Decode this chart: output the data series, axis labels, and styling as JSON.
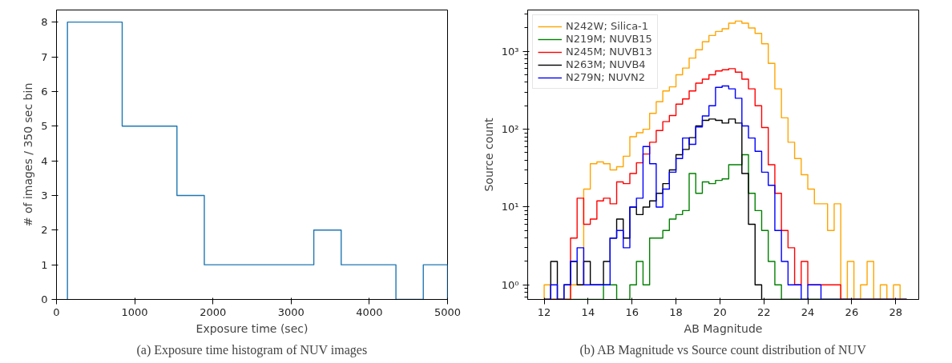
{
  "chart_data": [
    {
      "type": "histogram",
      "xlabel": "Exposure time (sec)",
      "ylabel": "# of images / 350 sec bin",
      "annotations": [
        "(a) Exposure time histogram of NUV images"
      ],
      "bins": [
        140,
        490,
        840,
        1190,
        1540,
        1890,
        2240,
        2590,
        2940,
        3290,
        3640,
        3990,
        4340,
        4690,
        5000
      ],
      "series": [
        {
          "color": "#1f77b4",
          "values": [
            8,
            8,
            5,
            5,
            3,
            1,
            1,
            1,
            1,
            2,
            1,
            1,
            0,
            1
          ]
        }
      ],
      "xlim": [
        0,
        5000
      ],
      "xticks": [
        0,
        1000,
        2000,
        3000,
        4000,
        5000
      ],
      "ylim": [
        0,
        8.35
      ],
      "yticks": [
        0,
        1,
        2,
        3,
        4,
        5,
        6,
        7,
        8
      ],
      "grid": false,
      "legend": false
    },
    {
      "type": "histogram",
      "xlabel": "AB Magnitude",
      "ylabel": "Source count",
      "annotations": [
        "(b) AB Magnitude vs Source count distribution of NUV"
      ],
      "bins": [
        12.0,
        12.3,
        12.6,
        12.9,
        13.2,
        13.5,
        13.8,
        14.1,
        14.4,
        14.7,
        15.0,
        15.3,
        15.6,
        15.9,
        16.2,
        16.5,
        16.8,
        17.1,
        17.4,
        17.7,
        18.0,
        18.3,
        18.6,
        18.9,
        19.2,
        19.5,
        19.8,
        20.1,
        20.4,
        20.7,
        21.0,
        21.3,
        21.6,
        21.9,
        22.2,
        22.5,
        22.8,
        23.1,
        23.4,
        23.7,
        24.0,
        24.3,
        24.6,
        24.9,
        25.2,
        25.5,
        25.8,
        26.1,
        26.4,
        26.7,
        27.0,
        27.3,
        27.6,
        27.9,
        28.2,
        28.5
      ],
      "series": [
        {
          "name": "N242W; Silica-1",
          "color": "#ffa500",
          "values": [
            1,
            null,
            null,
            null,
            1,
            1,
            17,
            36,
            38,
            36,
            30,
            33,
            45,
            80,
            90,
            100,
            160,
            225,
            310,
            350,
            500,
            610,
            820,
            1050,
            1330,
            1600,
            1800,
            1950,
            2300,
            2450,
            2300,
            2000,
            1700,
            1250,
            700,
            330,
            140,
            68,
            42,
            26,
            17,
            11,
            11,
            5,
            11,
            null,
            2,
            null,
            1,
            2,
            null,
            1,
            null,
            1,
            null
          ]
        },
        {
          "name": "N219M; NUVB15",
          "color": "#008000",
          "values": [
            null,
            null,
            null,
            null,
            null,
            null,
            null,
            null,
            null,
            1,
            1,
            null,
            null,
            1,
            2,
            1,
            4,
            4,
            5,
            7,
            8,
            9,
            27,
            15,
            21,
            20,
            22,
            23,
            35,
            35,
            47,
            15,
            9,
            5,
            2,
            1,
            null,
            null,
            null,
            null,
            null,
            null,
            null,
            null,
            null,
            null,
            null,
            null,
            null,
            null,
            null,
            null,
            null,
            null,
            null
          ]
        },
        {
          "name": "N245M; NUVB13",
          "color": "#ff0000",
          "values": [
            null,
            null,
            null,
            null,
            4,
            13,
            6,
            7,
            12,
            13,
            11,
            21,
            20,
            27,
            37,
            48,
            68,
            96,
            125,
            150,
            210,
            245,
            310,
            390,
            440,
            500,
            560,
            580,
            600,
            540,
            440,
            330,
            200,
            105,
            35,
            15,
            5,
            3,
            1,
            2,
            1,
            1,
            1,
            1,
            1,
            null,
            null,
            null,
            null,
            null,
            null,
            null,
            null,
            null,
            null
          ]
        },
        {
          "name": "N263M; NUVB4",
          "color": "#000000",
          "values": [
            null,
            2,
            null,
            1,
            2,
            1,
            2,
            1,
            1,
            2,
            4,
            7,
            4,
            10,
            8,
            10,
            12,
            15,
            20,
            30,
            47,
            55,
            78,
            110,
            130,
            135,
            130,
            120,
            135,
            120,
            27,
            6,
            1,
            null,
            null,
            null,
            null,
            null,
            null,
            null,
            null,
            null,
            null,
            null,
            null,
            null,
            null,
            null,
            null,
            null,
            null,
            null,
            null,
            null,
            null
          ]
        },
        {
          "name": "N279N; NUVN2",
          "color": "#0000ff",
          "values": [
            null,
            1,
            null,
            1,
            2,
            3,
            1,
            1,
            1,
            1,
            4,
            5,
            3,
            10,
            13,
            60,
            36,
            10,
            17,
            28,
            42,
            77,
            64,
            107,
            148,
            200,
            345,
            360,
            330,
            250,
            110,
            77,
            52,
            28,
            19,
            5,
            2,
            1,
            1,
            null,
            1,
            1,
            null,
            null,
            null,
            null,
            null,
            null,
            null,
            null,
            null,
            null,
            null,
            null,
            null
          ]
        }
      ],
      "xlim": [
        11.25,
        29.05
      ],
      "xticks": [
        12,
        14,
        16,
        18,
        20,
        22,
        24,
        26,
        28
      ],
      "ylim": [
        0.65,
        3400
      ],
      "log": "y",
      "yticks": [
        {
          "value": 1,
          "label": "10⁰"
        },
        {
          "value": 10,
          "label": "10¹"
        },
        {
          "value": 100,
          "label": "10²"
        },
        {
          "value": 1000,
          "label": "10³"
        }
      ],
      "grid": false,
      "legend": "top left"
    }
  ]
}
